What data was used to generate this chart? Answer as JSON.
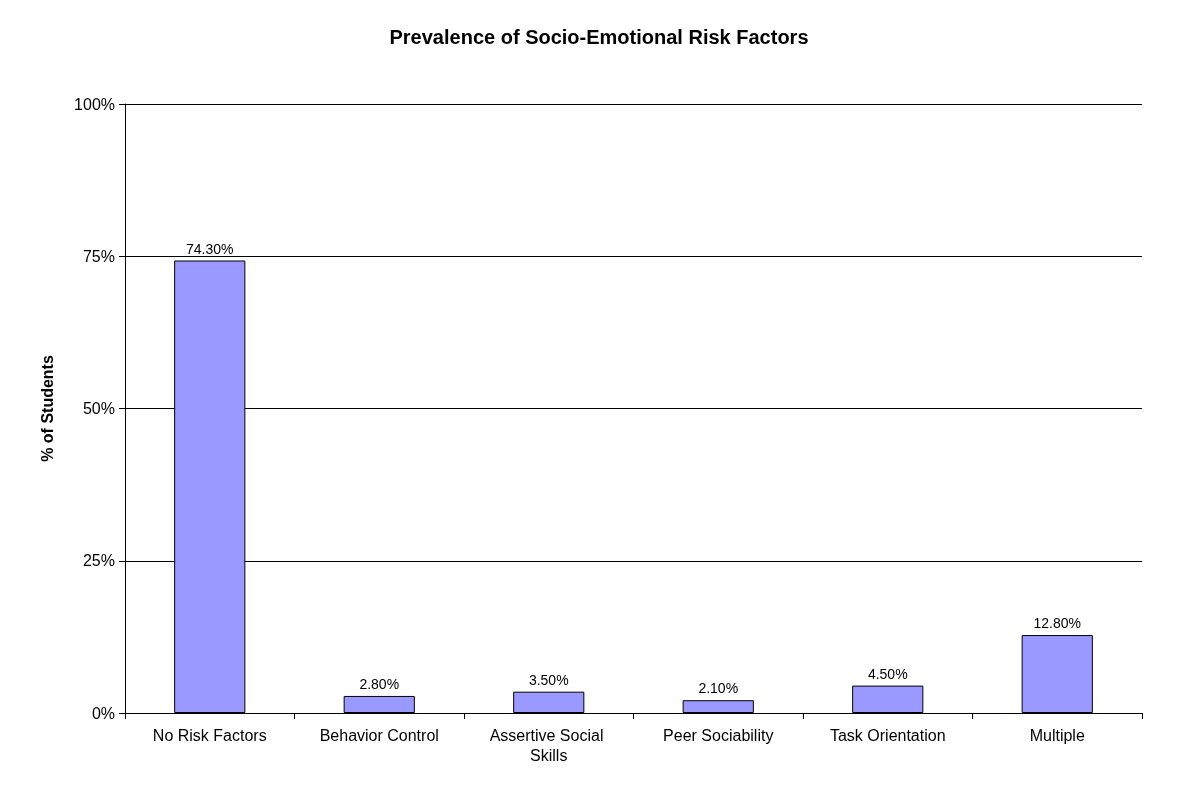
{
  "chart_data": {
    "type": "bar",
    "title": "Prevalence of Socio-Emotional Risk Factors",
    "ylabel": "% of Students",
    "categories": [
      "No Risk Factors",
      "Behavior Control",
      "Assertive Social Skills",
      "Peer Sociability",
      "Task Orientation",
      "Multiple"
    ],
    "values": [
      74.3,
      2.8,
      3.5,
      2.1,
      4.5,
      12.8
    ],
    "value_labels": [
      "74.30%",
      "2.80%",
      "3.50%",
      "2.10%",
      "4.50%",
      "12.80%"
    ],
    "color": "#9999ff",
    "ylim": [
      0,
      100
    ],
    "yticks": [
      {
        "value": 0,
        "label": "0%"
      },
      {
        "value": 25,
        "label": "25%"
      },
      {
        "value": 50,
        "label": "50%"
      },
      {
        "value": 75,
        "label": "75%"
      },
      {
        "value": 100,
        "label": "100%"
      }
    ],
    "grid": "y"
  }
}
